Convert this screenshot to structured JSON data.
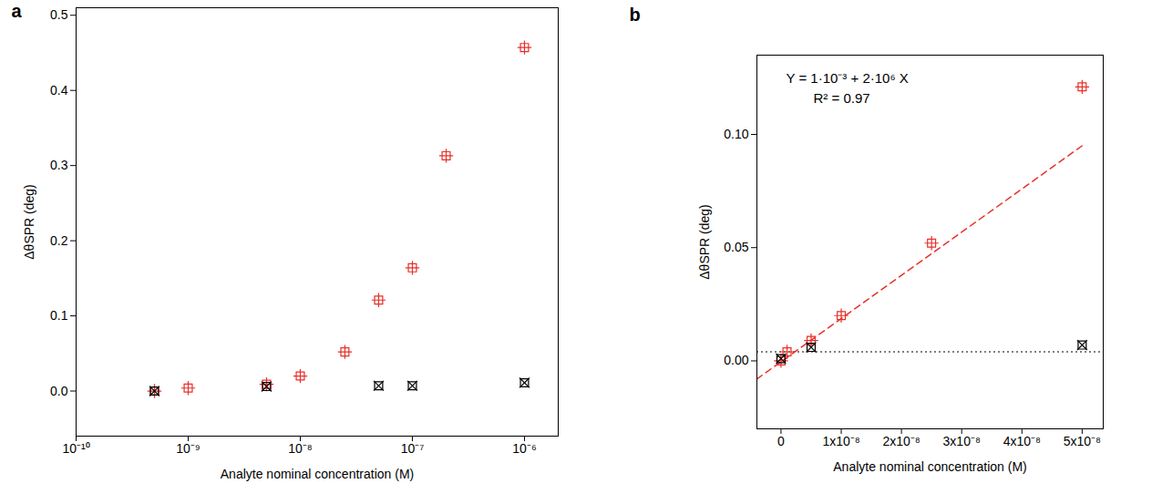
{
  "chart_data": [
    {
      "panel": "a",
      "type": "scatter",
      "log": "x",
      "grid": false,
      "xlabel": "Analyte nominal concentration (M)",
      "ylabel": "ΔθSPR (deg)",
      "xlim": [
        1e-10,
        2e-06
      ],
      "xticks": [
        {
          "value": 1e-10,
          "label": "10⁻¹⁰"
        },
        {
          "value": 1e-09,
          "label": "10⁻⁹"
        },
        {
          "value": 1e-08,
          "label": "10⁻⁸"
        },
        {
          "value": 1e-07,
          "label": "10⁻⁷"
        },
        {
          "value": 1e-06,
          "label": "10⁻⁶"
        }
      ],
      "ylim": [
        -0.06,
        0.51
      ],
      "yticks": [
        {
          "value": 0,
          "label": "0.0"
        },
        {
          "value": 0.1,
          "label": "0.1"
        },
        {
          "value": 0.2,
          "label": "0.2"
        },
        {
          "value": 0.3,
          "label": "0.3"
        },
        {
          "value": 0.4,
          "label": "0.4"
        },
        {
          "value": 0.5,
          "label": "0.5"
        }
      ],
      "series": [
        {
          "color": "#e8302a",
          "marker": "square-plus",
          "x": [
            5e-10,
            1e-09,
            5e-09,
            1e-08,
            2.5e-08,
            5e-08,
            1e-07,
            2e-07,
            1e-06
          ],
          "values": [
            0.0,
            0.004,
            0.009,
            0.02,
            0.052,
            0.121,
            0.164,
            0.313,
            0.457
          ]
        },
        {
          "color": "#000000",
          "marker": "square-x",
          "x": [
            5e-10,
            5e-09,
            5e-08,
            1e-07,
            1e-06
          ],
          "values": [
            0.0,
            0.006,
            0.007,
            0.007,
            0.011
          ]
        }
      ]
    },
    {
      "panel": "b",
      "type": "scatter",
      "grid": false,
      "xlabel": "Analyte nominal concentration (M)",
      "ylabel": "ΔθSPR (deg)",
      "xlim": [
        -4e-09,
        5.35e-08
      ],
      "xticks": [
        0,
        {
          "value": 1e-08,
          "label": "1x10⁻⁸"
        },
        {
          "value": 2e-08,
          "label": "2x10⁻⁸"
        },
        {
          "value": 3e-08,
          "label": "3x10⁻⁸"
        },
        {
          "value": 4e-08,
          "label": "4x10⁻⁸"
        },
        {
          "value": 5e-08,
          "label": "5x10⁻⁸"
        }
      ],
      "ylim": [
        -0.03,
        0.135
      ],
      "yticks": [
        {
          "value": 0,
          "label": "0.00"
        },
        {
          "value": 0.05,
          "label": "0.05"
        },
        {
          "value": 0.1,
          "label": "0.10"
        }
      ],
      "series": [
        {
          "color": "#e8302a",
          "marker": "square-plus",
          "x": [
            0,
            1e-09,
            5e-09,
            1e-08,
            2.5e-08,
            5e-08
          ],
          "values": [
            0.0,
            0.004,
            0.009,
            0.02,
            0.052,
            0.121
          ]
        },
        {
          "color": "#000000",
          "marker": "square-x",
          "x": [
            0,
            5e-09,
            5e-08
          ],
          "values": [
            0.001,
            0.006,
            0.007
          ]
        }
      ],
      "fit": {
        "color": "#e8302a",
        "line_style": "dashed",
        "x": [
          -4e-09,
          5e-08
        ],
        "values": [
          -0.008,
          0.095
        ]
      },
      "reference_line": {
        "color": "#000000",
        "line_style": "dotted",
        "value": 0.004
      },
      "annotations": [
        "Y = 1·10⁻³ + 2·10⁶ X",
        "R² = 0.97"
      ]
    }
  ]
}
